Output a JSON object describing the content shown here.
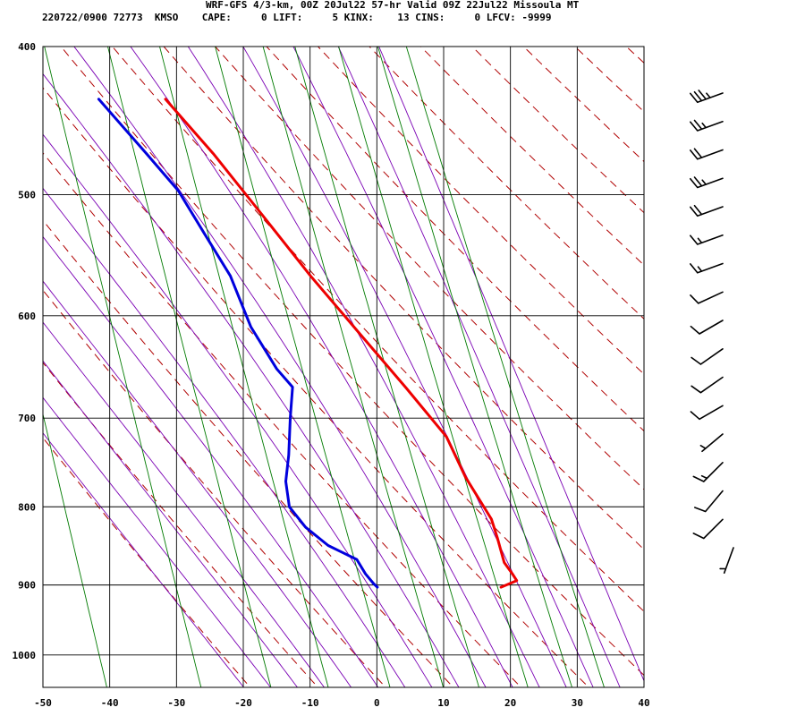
{
  "header": {
    "line1": "WRF-GFS 4/3-km, 00Z 20Jul22 57-hr Valid 09Z 22Jul22 Missoula MT",
    "line2": "220722/0900 72773  KMSO    CAPE:     0 LIFT:     5 KINX:    13 CINS:     0 LFCV: -9999"
  },
  "chart_data": {
    "type": "line",
    "subtype": "skew-T log-P sounding",
    "title": "WRF-GFS 4/3-km, 00Z 20Jul22 57-hr Valid 09Z 22Jul22 Missoula MT",
    "xlabel": "",
    "ylabel": "",
    "x_ticks": [
      -50,
      -40,
      -30,
      -20,
      -10,
      0,
      10,
      20,
      30,
      40
    ],
    "y_ticks": [
      400,
      500,
      600,
      700,
      800,
      900,
      1000
    ],
    "xlim": [
      -50,
      40
    ],
    "ylim": [
      1050,
      400
    ],
    "y_scale": "log",
    "grid": true,
    "series": [
      {
        "color": "#ee0000",
        "points": [
          [
            -20,
            433
          ],
          [
            -14,
            470
          ],
          [
            -8,
            515
          ],
          [
            -2,
            565
          ],
          [
            4,
            615
          ],
          [
            10,
            669
          ],
          [
            15,
            720
          ],
          [
            17,
            765
          ],
          [
            20,
            815
          ],
          [
            20.5,
            838
          ],
          [
            21,
            870
          ],
          [
            22,
            885
          ],
          [
            22.5,
            894
          ],
          [
            20,
            903
          ]
        ]
      },
      {
        "color": "#0000dd",
        "points": [
          [
            -30,
            433
          ],
          [
            -24,
            470
          ],
          [
            -20,
            497
          ],
          [
            -17,
            530
          ],
          [
            -14,
            565
          ],
          [
            -12,
            610
          ],
          [
            -9,
            650
          ],
          [
            -7,
            668
          ],
          [
            -8,
            700
          ],
          [
            -9,
            740
          ],
          [
            -10,
            770
          ],
          [
            -10,
            800
          ],
          [
            -8,
            825
          ],
          [
            -5,
            848
          ],
          [
            -1,
            866
          ],
          [
            0,
            885
          ],
          [
            1,
            898
          ],
          [
            1.5,
            903
          ]
        ]
      }
    ],
    "wind_barbs": [
      {
        "speed_kt": 35,
        "direction": 250
      },
      {
        "speed_kt": 25,
        "direction": 250
      },
      {
        "speed_kt": 20,
        "direction": 250
      },
      {
        "speed_kt": 25,
        "direction": 250
      },
      {
        "speed_kt": 20,
        "direction": 250
      },
      {
        "speed_kt": 15,
        "direction": 250
      },
      {
        "speed_kt": 15,
        "direction": 250
      },
      {
        "speed_kt": 10,
        "direction": 245
      },
      {
        "speed_kt": 10,
        "direction": 240
      },
      {
        "speed_kt": 10,
        "direction": 235
      },
      {
        "speed_kt": 10,
        "direction": 235
      },
      {
        "speed_kt": 10,
        "direction": 240
      },
      {
        "speed_kt": 5,
        "direction": 230
      },
      {
        "speed_kt": 15,
        "direction": 225
      },
      {
        "speed_kt": 10,
        "direction": 220
      },
      {
        "speed_kt": 10,
        "direction": 225
      },
      {
        "speed_kt": 5,
        "direction": 200
      }
    ],
    "colors": {
      "isotherm": "#000000",
      "dry_adiabat": "#b00000",
      "moist_adiabat": "#7a00b4",
      "mixing_ratio": "#007a00",
      "temperature": "#ee0000",
      "dewpoint": "#0000dd"
    }
  }
}
